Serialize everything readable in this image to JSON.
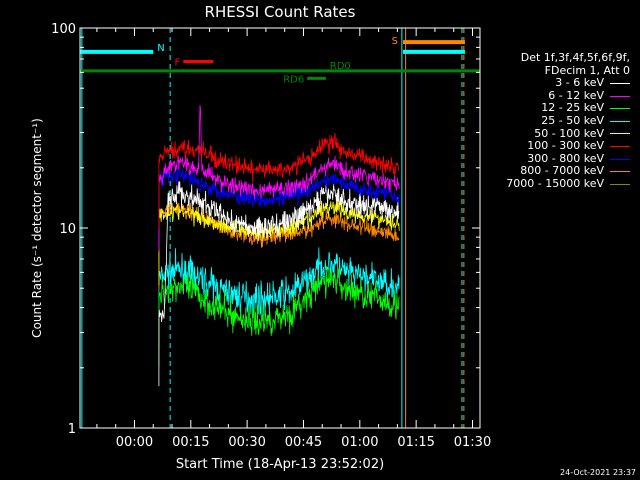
{
  "chart_data": {
    "type": "line",
    "title": "RHESSI Count Rates",
    "xlabel": "Start Time (18-Apr-13 23:52:02)",
    "ylabel": "Count Rate (s⁻¹ detector segment⁻¹)",
    "y_scale": "log",
    "ylim": [
      1,
      100
    ],
    "y_ticks": [
      1,
      10,
      100
    ],
    "x_unit": "minutes since start",
    "xlim": [
      -6.5,
      100
    ],
    "x_ticks": [
      {
        "min": 8,
        "label": "00:00"
      },
      {
        "min": 23,
        "label": "00:15"
      },
      {
        "min": 38,
        "label": "00:30"
      },
      {
        "min": 53,
        "label": "00:45"
      },
      {
        "min": 68,
        "label": "01:00"
      },
      {
        "min": 83,
        "label": "01:15"
      },
      {
        "min": 98,
        "label": "01:30"
      }
    ],
    "data_start_min": 14.5,
    "data_end_min": 78.5,
    "series": [
      {
        "name": "3 - 6 keV",
        "color": "#ffffff",
        "values": [
          [
            14.5,
            3.6
          ],
          [
            16,
            3.8
          ],
          [
            17,
            14
          ],
          [
            20,
            15
          ],
          [
            25,
            13.5
          ],
          [
            30,
            12
          ],
          [
            35,
            10.5
          ],
          [
            40,
            10
          ],
          [
            45,
            10.3
          ],
          [
            50,
            11
          ],
          [
            55,
            12.5
          ],
          [
            58,
            14.5
          ],
          [
            61,
            15
          ],
          [
            64,
            13.5
          ],
          [
            70,
            13
          ],
          [
            75,
            12.5
          ],
          [
            78.5,
            12
          ]
        ]
      },
      {
        "name": "6 - 12 keV",
        "color": "#ff00ff",
        "values": [
          [
            14.5,
            17
          ],
          [
            17,
            20
          ],
          [
            20,
            21.5
          ],
          [
            23,
            20
          ],
          [
            27,
            19
          ],
          [
            30,
            17.5
          ],
          [
            35,
            16
          ],
          [
            40,
            15.5
          ],
          [
            45,
            15.5
          ],
          [
            50,
            16
          ],
          [
            55,
            17.5
          ],
          [
            58,
            20
          ],
          [
            61,
            21
          ],
          [
            64,
            19
          ],
          [
            70,
            18
          ],
          [
            75,
            17
          ],
          [
            78.5,
            16.5
          ]
        ]
      },
      {
        "name": "12 - 25 keV",
        "color": "#00ff00",
        "values": [
          [
            14.5,
            4.5
          ],
          [
            17,
            5
          ],
          [
            20,
            5.2
          ],
          [
            25,
            4.6
          ],
          [
            30,
            4
          ],
          [
            35,
            3.6
          ],
          [
            40,
            3.4
          ],
          [
            45,
            3.5
          ],
          [
            50,
            3.8
          ],
          [
            55,
            4.6
          ],
          [
            58,
            5.4
          ],
          [
            61,
            5.6
          ],
          [
            64,
            5
          ],
          [
            70,
            4.6
          ],
          [
            75,
            4.3
          ],
          [
            78.5,
            4.1
          ]
        ]
      },
      {
        "name": "25 - 50 keV",
        "color": "#00ffff",
        "values": [
          [
            14.5,
            5.5
          ],
          [
            17,
            6
          ],
          [
            20,
            6.2
          ],
          [
            25,
            5.6
          ],
          [
            30,
            5
          ],
          [
            35,
            4.6
          ],
          [
            40,
            4.4
          ],
          [
            45,
            4.5
          ],
          [
            50,
            4.8
          ],
          [
            55,
            5.7
          ],
          [
            58,
            6.5
          ],
          [
            61,
            6.6
          ],
          [
            64,
            6
          ],
          [
            70,
            5.6
          ],
          [
            75,
            5.3
          ],
          [
            78.5,
            5
          ]
        ]
      },
      {
        "name": "50 - 100 keV",
        "color": "#ffff00",
        "values": [
          [
            14.5,
            11.5
          ],
          [
            17,
            12
          ],
          [
            20,
            12.2
          ],
          [
            25,
            11.5
          ],
          [
            30,
            10.5
          ],
          [
            35,
            10
          ],
          [
            40,
            9.5
          ],
          [
            45,
            9.7
          ],
          [
            50,
            10
          ],
          [
            55,
            11
          ],
          [
            58,
            12.5
          ],
          [
            61,
            12.8
          ],
          [
            64,
            12
          ],
          [
            70,
            11.5
          ],
          [
            75,
            11
          ],
          [
            78.5,
            10.5
          ]
        ]
      },
      {
        "name": "100 - 300 keV",
        "color": "#ff0000",
        "values": [
          [
            14.5,
            22
          ],
          [
            17,
            24
          ],
          [
            20,
            25
          ],
          [
            23,
            25
          ],
          [
            27,
            23.5
          ],
          [
            30,
            22
          ],
          [
            35,
            20.5
          ],
          [
            40,
            19.5
          ],
          [
            45,
            19.5
          ],
          [
            50,
            20
          ],
          [
            55,
            22.5
          ],
          [
            58,
            26
          ],
          [
            61,
            27
          ],
          [
            64,
            24
          ],
          [
            70,
            22
          ],
          [
            75,
            21
          ],
          [
            78.5,
            20.5
          ]
        ]
      },
      {
        "name": "300 - 800 keV",
        "color": "#0000ff",
        "values": [
          [
            14.5,
            17.5
          ],
          [
            17,
            18.5
          ],
          [
            20,
            18.5
          ],
          [
            25,
            17
          ],
          [
            30,
            15.5
          ],
          [
            35,
            14.5
          ],
          [
            40,
            14
          ],
          [
            45,
            14
          ],
          [
            50,
            14.5
          ],
          [
            55,
            15.5
          ],
          [
            58,
            17
          ],
          [
            61,
            17.5
          ],
          [
            64,
            16.5
          ],
          [
            70,
            15.5
          ],
          [
            75,
            15
          ],
          [
            78.5,
            14.5
          ]
        ]
      },
      {
        "name": "800 - 7000 keV",
        "color": "#ff8800",
        "values": [
          [
            14.5,
            11
          ],
          [
            17,
            12.5
          ],
          [
            20,
            12.5
          ],
          [
            25,
            11.5
          ],
          [
            30,
            10.5
          ],
          [
            35,
            9.5
          ],
          [
            40,
            9
          ],
          [
            45,
            9
          ],
          [
            50,
            9.2
          ],
          [
            55,
            10
          ],
          [
            58,
            11
          ],
          [
            61,
            11.2
          ],
          [
            64,
            10.5
          ],
          [
            70,
            10
          ],
          [
            75,
            9.5
          ],
          [
            78.5,
            9
          ]
        ]
      },
      {
        "name": "7000 - 15000 keV",
        "color": "#888800",
        "values": []
      }
    ],
    "spike": {
      "min": 25.5,
      "value": 44
    },
    "markers": [
      {
        "label": "N",
        "color": "#00ffff",
        "x1": -6.5,
        "x2": 13,
        "y": 76
      },
      {
        "label": "F",
        "color": "#ff0000",
        "x1": 21,
        "x2": 29,
        "y": 68
      },
      {
        "label": "RD0",
        "color": "#008800",
        "x1": -6.5,
        "x2": 100,
        "y": 61
      },
      {
        "label": "RD6",
        "color": "#008800",
        "x1": 54,
        "x2": 59,
        "y": 56
      },
      {
        "label": "S",
        "color": "#ff8800",
        "x1": 79.5,
        "x2": 96,
        "y": 85
      },
      {
        "label": "",
        "color": "#00ffff",
        "x1": 79.5,
        "x2": 96,
        "y": 76
      }
    ],
    "vlines": [
      {
        "min": -6,
        "color": "#00ffff",
        "dash": false
      },
      {
        "min": 17.5,
        "color": "#00ffff",
        "dash": true
      },
      {
        "min": 79.2,
        "color": "#00ffff",
        "dash": false
      },
      {
        "min": 80.2,
        "color": "#ff8800",
        "dash": false
      },
      {
        "min": 95.2,
        "color": "#00ffff",
        "dash": true
      },
      {
        "min": 95.7,
        "color": "#ff8800",
        "dash": true
      }
    ]
  },
  "legend": {
    "header_line1": "Det 1f,3f,4f,5f,6f,9f,",
    "header_line2": "FDecim 1, Att 0"
  },
  "footer": {
    "timestamp": "24-Oct-2021 23:37"
  }
}
